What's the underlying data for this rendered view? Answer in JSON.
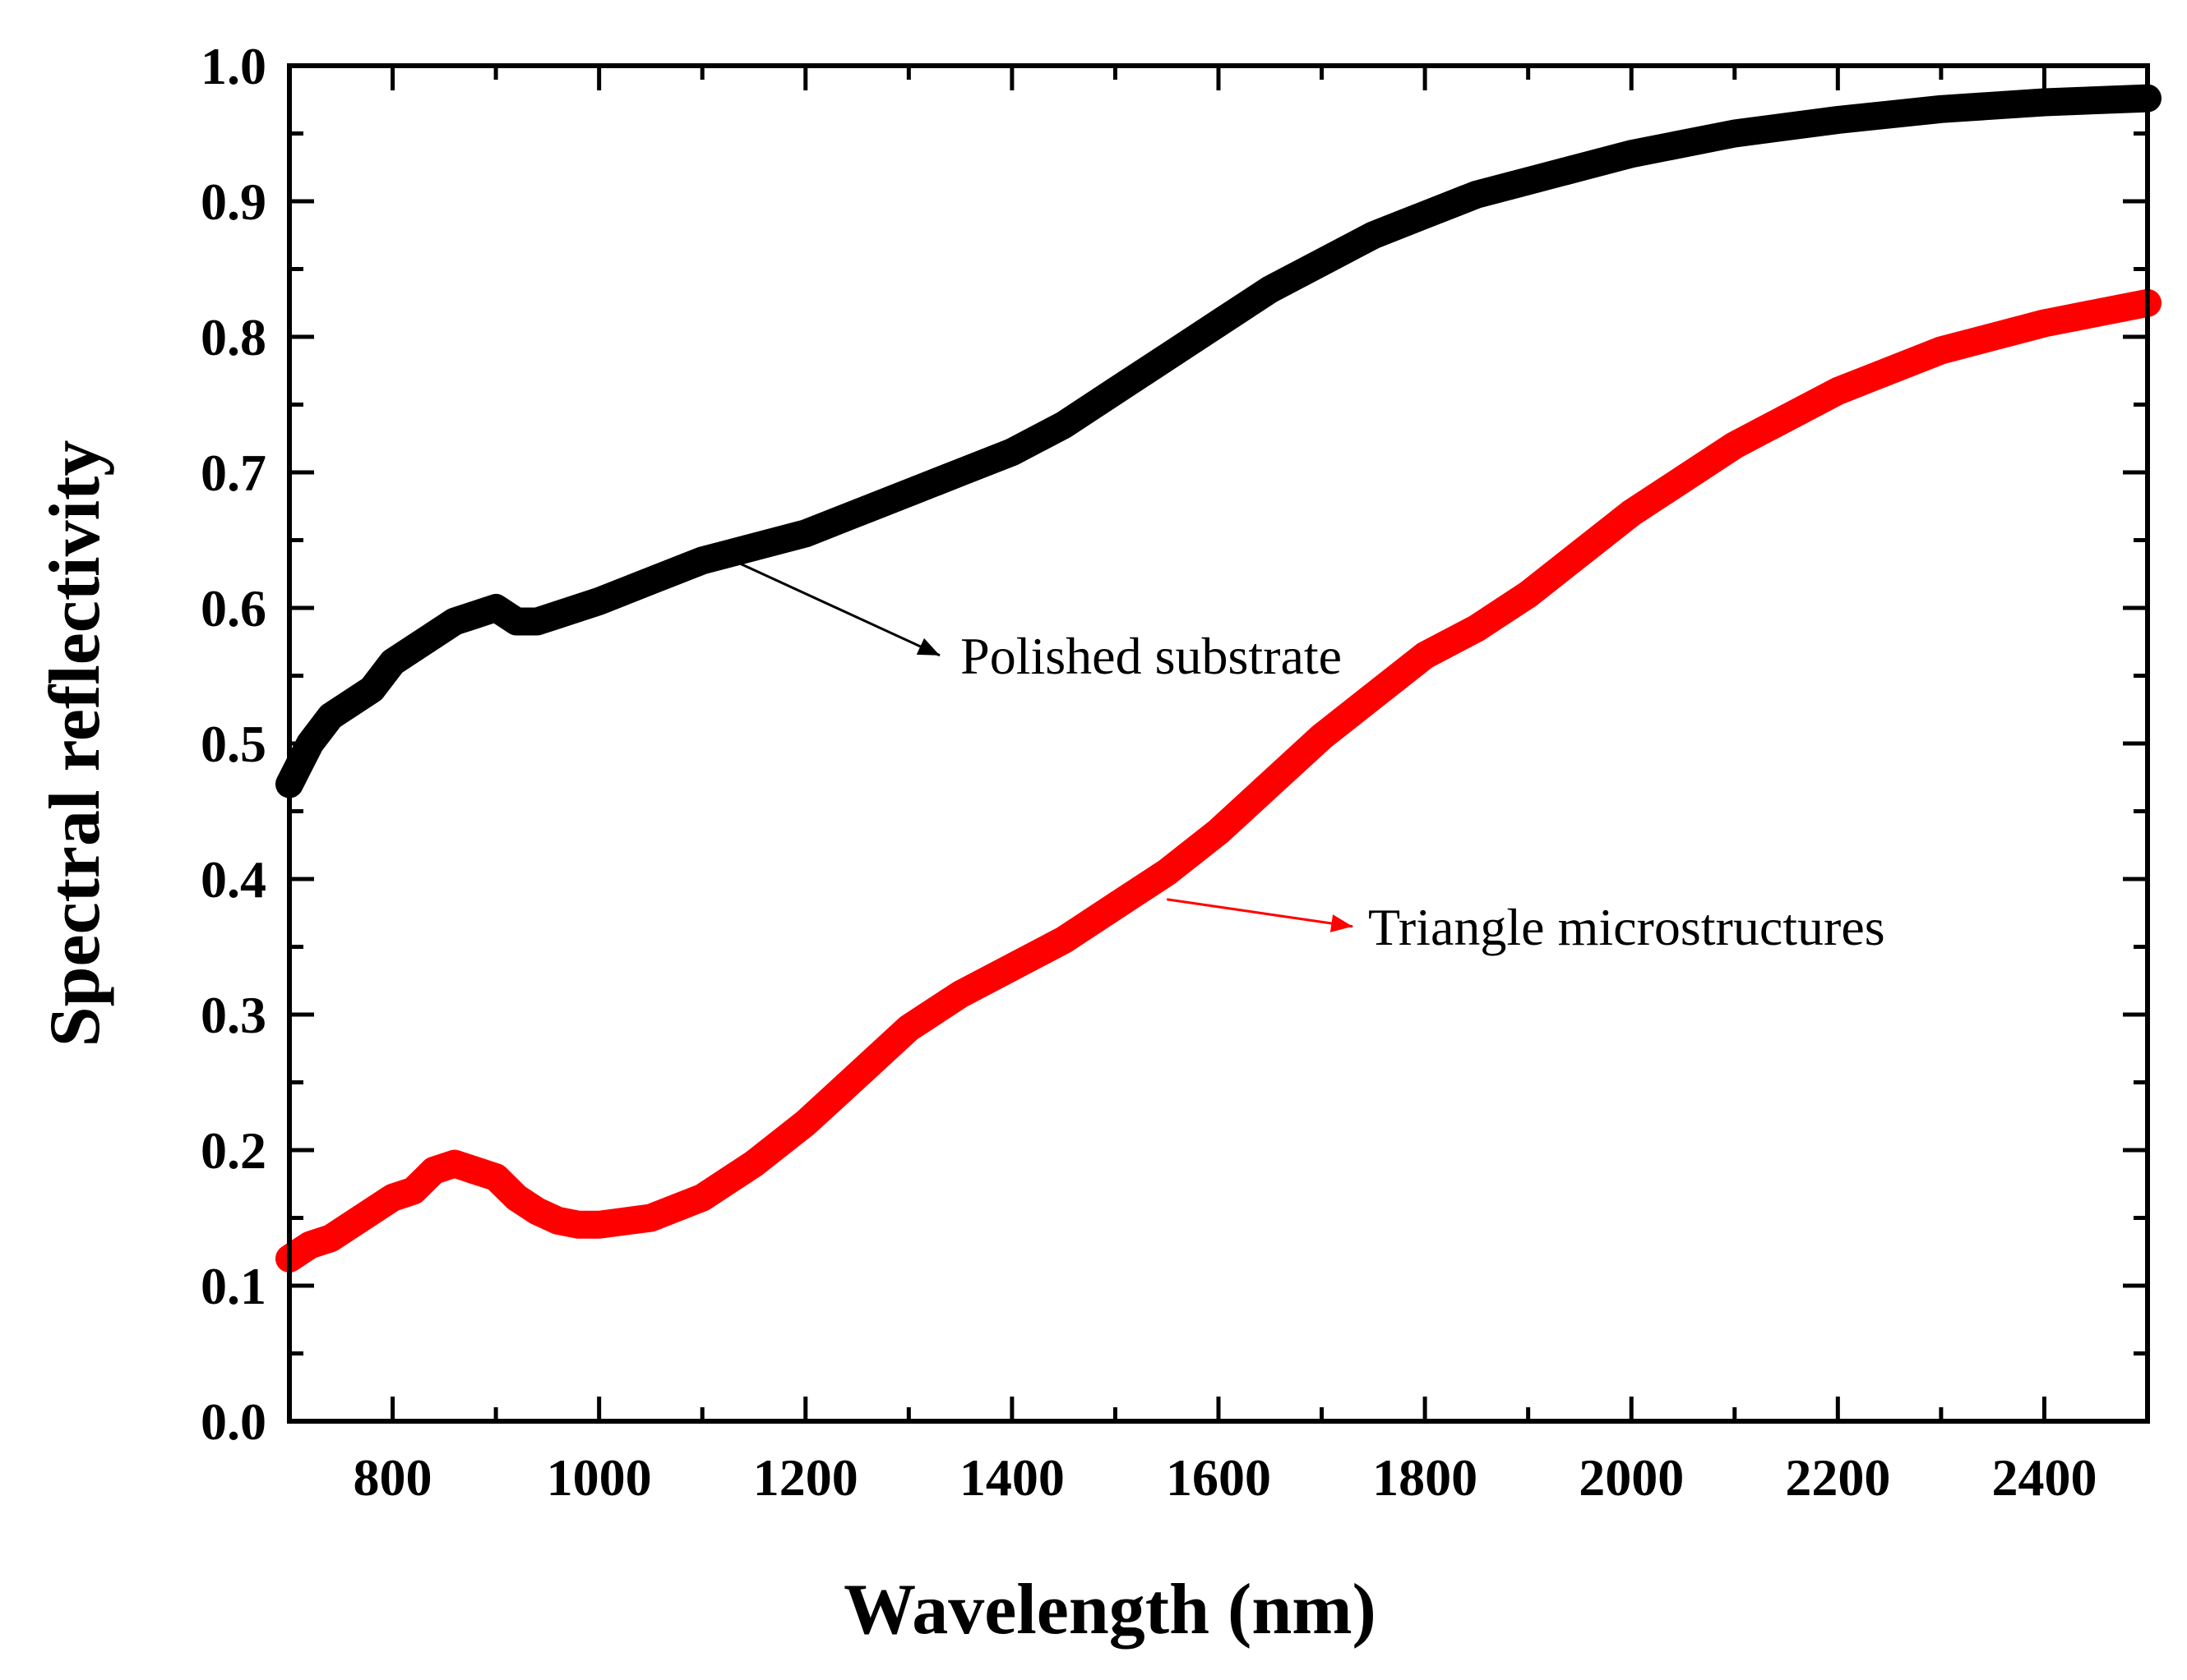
{
  "chart_data": {
    "type": "line",
    "title": "",
    "xlabel": "Wavelength (nm)",
    "ylabel": "Spectral reflectivity",
    "xlim": [
      700,
      2500
    ],
    "ylim": [
      0.0,
      1.0
    ],
    "xticks": [
      800,
      1000,
      1200,
      1400,
      1600,
      1800,
      2000,
      2200,
      2400
    ],
    "xtick_labels": [
      "800",
      "1000",
      "1200",
      "1400",
      "1600",
      "1800",
      "2000",
      "2200",
      "2400"
    ],
    "yticks": [
      0.0,
      0.1,
      0.2,
      0.3,
      0.4,
      0.5,
      0.6,
      0.7,
      0.8,
      0.9,
      1.0
    ],
    "ytick_labels": [
      "0.0",
      "0.1",
      "0.2",
      "0.3",
      "0.4",
      "0.5",
      "0.6",
      "0.7",
      "0.8",
      "0.9",
      "1.0"
    ],
    "grid": false,
    "series": [
      {
        "name": "Polished substrate",
        "color": "#000000",
        "x": [
          700,
          720,
          740,
          760,
          780,
          800,
          820,
          840,
          860,
          880,
          900,
          920,
          940,
          960,
          1000,
          1050,
          1100,
          1150,
          1200,
          1250,
          1300,
          1350,
          1400,
          1450,
          1500,
          1550,
          1600,
          1650,
          1700,
          1750,
          1800,
          1850,
          1900,
          1950,
          2000,
          2100,
          2200,
          2300,
          2400,
          2500
        ],
        "values": [
          0.47,
          0.5,
          0.52,
          0.53,
          0.54,
          0.56,
          0.57,
          0.58,
          0.59,
          0.595,
          0.6,
          0.59,
          0.59,
          0.595,
          0.605,
          0.62,
          0.635,
          0.645,
          0.655,
          0.67,
          0.685,
          0.7,
          0.715,
          0.735,
          0.76,
          0.785,
          0.81,
          0.835,
          0.855,
          0.875,
          0.89,
          0.905,
          0.915,
          0.925,
          0.935,
          0.95,
          0.96,
          0.968,
          0.973,
          0.976
        ]
      },
      {
        "name": "Triangle microstructures",
        "color": "#ff0000",
        "x": [
          700,
          720,
          740,
          760,
          780,
          800,
          820,
          840,
          860,
          880,
          900,
          920,
          940,
          960,
          980,
          1000,
          1050,
          1100,
          1150,
          1200,
          1250,
          1300,
          1350,
          1400,
          1450,
          1500,
          1550,
          1600,
          1650,
          1700,
          1750,
          1800,
          1850,
          1900,
          1950,
          2000,
          2100,
          2200,
          2300,
          2400,
          2500
        ],
        "values": [
          0.12,
          0.13,
          0.135,
          0.145,
          0.155,
          0.165,
          0.17,
          0.185,
          0.19,
          0.185,
          0.18,
          0.165,
          0.155,
          0.148,
          0.145,
          0.145,
          0.15,
          0.165,
          0.19,
          0.22,
          0.255,
          0.29,
          0.315,
          0.335,
          0.355,
          0.38,
          0.405,
          0.435,
          0.47,
          0.505,
          0.535,
          0.565,
          0.585,
          0.61,
          0.64,
          0.67,
          0.72,
          0.76,
          0.79,
          0.81,
          0.825
        ]
      }
    ],
    "annotations": [
      {
        "text": "Polished substrate",
        "series": "Polished substrate",
        "arrow_from": [
          1130,
          0.635
        ],
        "arrow_to": [
          1330,
          0.565
        ],
        "text_at": [
          1350,
          0.565
        ]
      },
      {
        "text": "Triangle microstructures",
        "series": "Triangle microstructures",
        "arrow_from": [
          1550,
          0.385
        ],
        "arrow_to": [
          1730,
          0.365
        ],
        "text_at": [
          1745,
          0.365
        ]
      }
    ]
  }
}
